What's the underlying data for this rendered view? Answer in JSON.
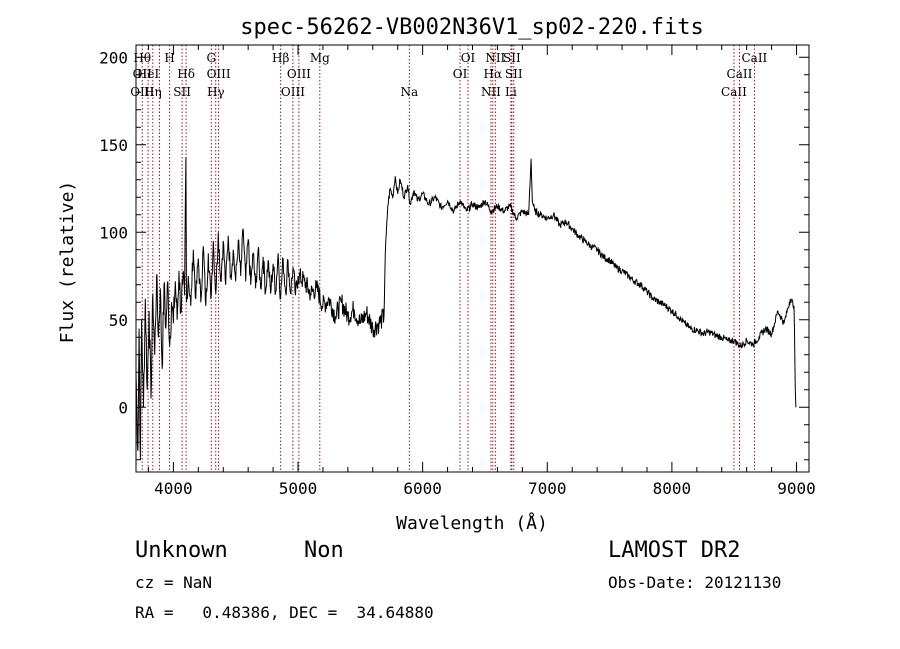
{
  "chart_data": {
    "type": "line",
    "title": "spec-56262-VB002N36V1_sp02-220.fits",
    "xlabel": "Wavelength (Å)",
    "ylabel": "Flux (relative)",
    "xlim": [
      3700,
      9100
    ],
    "ylim": [
      -37,
      207
    ],
    "xticks": [
      4000,
      5000,
      6000,
      7000,
      8000,
      9000
    ],
    "yticks": [
      0,
      50,
      100,
      150,
      200
    ],
    "grid": false,
    "legend": "none",
    "series": [
      {
        "points": [
          [
            3700,
            20
          ],
          [
            3715,
            -25
          ],
          [
            3725,
            45
          ],
          [
            3735,
            -30
          ],
          [
            3745,
            50
          ],
          [
            3760,
            0
          ],
          [
            3775,
            62
          ],
          [
            3790,
            10
          ],
          [
            3805,
            55
          ],
          [
            3820,
            5
          ],
          [
            3835,
            65
          ],
          [
            3850,
            30
          ],
          [
            3865,
            75
          ],
          [
            3880,
            40
          ],
          [
            3895,
            68
          ],
          [
            3910,
            22
          ],
          [
            3925,
            70
          ],
          [
            3940,
            45
          ],
          [
            3955,
            72
          ],
          [
            3970,
            35
          ],
          [
            3985,
            60
          ],
          [
            4000,
            48
          ],
          [
            4015,
            72
          ],
          [
            4030,
            50
          ],
          [
            4045,
            78
          ],
          [
            4060,
            55
          ],
          [
            4075,
            70
          ],
          [
            4090,
            64
          ],
          [
            4100,
            143
          ],
          [
            4105,
            60
          ],
          [
            4120,
            75
          ],
          [
            4140,
            58
          ],
          [
            4160,
            90
          ],
          [
            4180,
            62
          ],
          [
            4200,
            85
          ],
          [
            4220,
            60
          ],
          [
            4240,
            92
          ],
          [
            4260,
            58
          ],
          [
            4280,
            88
          ],
          [
            4300,
            62
          ],
          [
            4320,
            95
          ],
          [
            4340,
            65
          ],
          [
            4360,
            100
          ],
          [
            4380,
            72
          ],
          [
            4400,
            95
          ],
          [
            4420,
            70
          ],
          [
            4440,
            98
          ],
          [
            4460,
            75
          ],
          [
            4480,
            90
          ],
          [
            4500,
            72
          ],
          [
            4520,
            95
          ],
          [
            4540,
            75
          ],
          [
            4560,
            102
          ],
          [
            4580,
            72
          ],
          [
            4600,
            96
          ],
          [
            4620,
            70
          ],
          [
            4640,
            88
          ],
          [
            4660,
            68
          ],
          [
            4680,
            90
          ],
          [
            4700,
            68
          ],
          [
            4720,
            86
          ],
          [
            4740,
            66
          ],
          [
            4760,
            84
          ],
          [
            4780,
            65
          ],
          [
            4800,
            82
          ],
          [
            4820,
            66
          ],
          [
            4840,
            88
          ],
          [
            4860,
            62
          ],
          [
            4880,
            85
          ],
          [
            4900,
            66
          ],
          [
            4920,
            84
          ],
          [
            4940,
            65
          ],
          [
            4960,
            80
          ],
          [
            4980,
            64
          ],
          [
            5000,
            75
          ],
          [
            5050,
            72
          ],
          [
            5100,
            65
          ],
          [
            5150,
            68
          ],
          [
            5200,
            58
          ],
          [
            5250,
            62
          ],
          [
            5300,
            52
          ],
          [
            5350,
            60
          ],
          [
            5400,
            52
          ],
          [
            5450,
            56
          ],
          [
            5500,
            48
          ],
          [
            5550,
            54
          ],
          [
            5600,
            45
          ],
          [
            5650,
            48
          ],
          [
            5690,
            52
          ],
          [
            5700,
            88
          ],
          [
            5720,
            115
          ],
          [
            5740,
            125
          ],
          [
            5760,
            120
          ],
          [
            5780,
            132
          ],
          [
            5800,
            122
          ],
          [
            5820,
            130
          ],
          [
            5850,
            120
          ],
          [
            5880,
            127
          ],
          [
            5900,
            116
          ],
          [
            5930,
            124
          ],
          [
            5960,
            118
          ],
          [
            6000,
            122
          ],
          [
            6050,
            116
          ],
          [
            6100,
            120
          ],
          [
            6150,
            114
          ],
          [
            6200,
            118
          ],
          [
            6250,
            112
          ],
          [
            6300,
            118
          ],
          [
            6350,
            112
          ],
          [
            6400,
            116
          ],
          [
            6450,
            114
          ],
          [
            6500,
            118
          ],
          [
            6550,
            112
          ],
          [
            6600,
            115
          ],
          [
            6650,
            112
          ],
          [
            6700,
            115
          ],
          [
            6750,
            108
          ],
          [
            6800,
            112
          ],
          [
            6850,
            110
          ],
          [
            6870,
            142
          ],
          [
            6880,
            118
          ],
          [
            6900,
            112
          ],
          [
            6950,
            110
          ],
          [
            7000,
            108
          ],
          [
            7050,
            110
          ],
          [
            7100,
            104
          ],
          [
            7150,
            106
          ],
          [
            7200,
            102
          ],
          [
            7250,
            98
          ],
          [
            7300,
            95
          ],
          [
            7350,
            92
          ],
          [
            7400,
            90
          ],
          [
            7450,
            86
          ],
          [
            7500,
            84
          ],
          [
            7550,
            80
          ],
          [
            7600,
            78
          ],
          [
            7650,
            75
          ],
          [
            7700,
            72
          ],
          [
            7750,
            70
          ],
          [
            7800,
            66
          ],
          [
            7850,
            62
          ],
          [
            7900,
            60
          ],
          [
            7950,
            58
          ],
          [
            8000,
            55
          ],
          [
            8050,
            52
          ],
          [
            8100,
            48
          ],
          [
            8150,
            45
          ],
          [
            8200,
            44
          ],
          [
            8250,
            42
          ],
          [
            8300,
            43
          ],
          [
            8350,
            41
          ],
          [
            8400,
            40
          ],
          [
            8450,
            38
          ],
          [
            8500,
            38
          ],
          [
            8550,
            35
          ],
          [
            8600,
            38
          ],
          [
            8650,
            36
          ],
          [
            8700,
            40
          ],
          [
            8750,
            45
          ],
          [
            8800,
            42
          ],
          [
            8850,
            55
          ],
          [
            8900,
            48
          ],
          [
            8950,
            62
          ],
          [
            8980,
            58
          ],
          [
            8990,
            10
          ],
          [
            8995,
            0
          ]
        ]
      }
    ],
    "lines": [
      {
        "x": 3750,
        "labels": [
          {
            "text": "Hθ",
            "row": 0
          },
          {
            "text": "OII",
            "row": 1
          },
          {
            "text": "OIII",
            "row": 2
          }
        ]
      },
      {
        "x": 3797,
        "labels": [
          {
            "text": "HeI",
            "row": 1
          }
        ]
      },
      {
        "x": 3835,
        "labels": [
          {
            "text": "Hη",
            "row": 2
          }
        ]
      },
      {
        "x": 3889,
        "labels": []
      },
      {
        "x": 3970,
        "labels": [
          {
            "text": "H",
            "row": 0
          }
        ]
      },
      {
        "x": 4070,
        "labels": [
          {
            "text": "SII",
            "row": 2
          }
        ]
      },
      {
        "x": 4102,
        "labels": [
          {
            "text": "Hδ",
            "row": 1
          }
        ]
      },
      {
        "x": 4304,
        "labels": [
          {
            "text": "G",
            "row": 0
          }
        ]
      },
      {
        "x": 4340,
        "labels": [
          {
            "text": "Hγ",
            "row": 2
          }
        ]
      },
      {
        "x": 4363,
        "labels": [
          {
            "text": "OIII",
            "row": 1
          }
        ]
      },
      {
        "x": 4861,
        "labels": [
          {
            "text": "Hβ",
            "row": 0
          }
        ]
      },
      {
        "x": 4959,
        "labels": [
          {
            "text": "OIII",
            "row": 2
          }
        ]
      },
      {
        "x": 5007,
        "labels": [
          {
            "text": "OIII",
            "row": 1
          }
        ]
      },
      {
        "x": 5175,
        "labels": [
          {
            "text": "Mg",
            "row": 0
          }
        ]
      },
      {
        "x": 5893,
        "labels": [
          {
            "text": "Na",
            "row": 2
          }
        ]
      },
      {
        "x": 6300,
        "labels": [
          {
            "text": "OI",
            "row": 1
          }
        ]
      },
      {
        "x": 6364,
        "labels": [
          {
            "text": "OI",
            "row": 0
          }
        ]
      },
      {
        "x": 6548,
        "labels": [
          {
            "text": "NII",
            "row": 2
          }
        ]
      },
      {
        "x": 6563,
        "labels": [
          {
            "text": "Hα",
            "row": 1
          }
        ]
      },
      {
        "x": 6583,
        "labels": [
          {
            "text": "NII",
            "row": 0
          }
        ]
      },
      {
        "x": 6708,
        "labels": [
          {
            "text": "Li",
            "row": 2
          }
        ]
      },
      {
        "x": 6716,
        "labels": [
          {
            "text": "SII",
            "row": 0
          }
        ]
      },
      {
        "x": 6731,
        "labels": [
          {
            "text": "SII",
            "row": 1
          }
        ]
      },
      {
        "x": 8498,
        "labels": [
          {
            "text": "CaII",
            "row": 2
          }
        ]
      },
      {
        "x": 8542,
        "labels": [
          {
            "text": "CaII",
            "row": 1
          }
        ]
      },
      {
        "x": 8662,
        "labels": [
          {
            "text": "CaII",
            "row": 0
          }
        ]
      }
    ]
  },
  "info": {
    "class": "Unknown",
    "subclass": "Non",
    "survey": "LAMOST DR2",
    "cz": "cz = NaN",
    "obs_date": "Obs-Date: 20121130",
    "coords": "RA =   0.48386, DEC =  34.64880"
  }
}
